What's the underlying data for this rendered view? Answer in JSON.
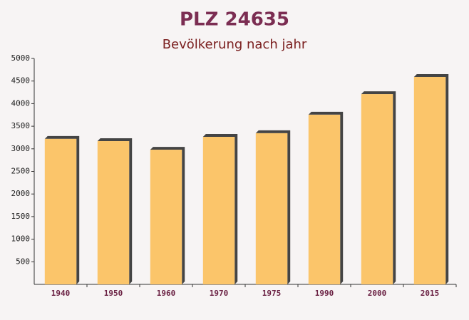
{
  "chart_data": {
    "type": "bar",
    "title": "PLZ 24635",
    "subtitle": "Bevölkerung nach jahr",
    "categories": [
      "1940",
      "1950",
      "1960",
      "1970",
      "1975",
      "1990",
      "2000",
      "2015"
    ],
    "values": [
      3220,
      3170,
      2980,
      3265,
      3345,
      3755,
      4210,
      4590
    ],
    "color": "#fbc56a",
    "ylim": [
      0,
      5000
    ],
    "yticks": [
      500,
      1000,
      1500,
      2000,
      2500,
      3000,
      3500,
      4000,
      4500,
      5000
    ],
    "grid": false
  }
}
